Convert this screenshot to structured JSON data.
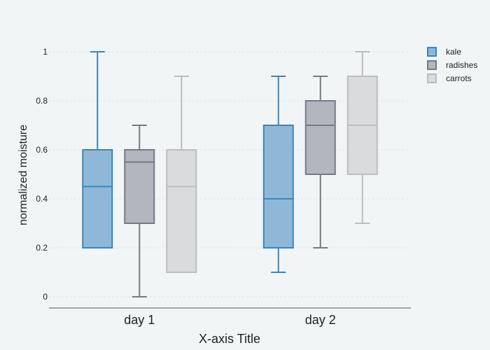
{
  "chart_data": {
    "type": "box",
    "title": "",
    "xlabel": "X-axis Title",
    "ylabel": "normalized moisture",
    "categories": [
      "day 1",
      "day 2"
    ],
    "yticks": [
      "0",
      "0.2",
      "0.4",
      "0.6",
      "0.8",
      "1"
    ],
    "ylim": [
      -0.04,
      1.04
    ],
    "grid": true,
    "legend_position": "top-right",
    "series": [
      {
        "name": "kale",
        "stroke": "#3d85b6",
        "fill": "#8fb8d8",
        "boxes": [
          {
            "category": "day 1",
            "min": 0.2,
            "q1": 0.2,
            "median": 0.45,
            "q3": 0.6,
            "max": 1.0
          },
          {
            "category": "day 2",
            "min": 0.1,
            "q1": 0.2,
            "median": 0.4,
            "q3": 0.7,
            "max": 0.9
          }
        ]
      },
      {
        "name": "radishes",
        "stroke": "#767a82",
        "fill": "#b2b6be",
        "boxes": [
          {
            "category": "day 1",
            "min": 0.0,
            "q1": 0.3,
            "median": 0.55,
            "q3": 0.6,
            "max": 0.7
          },
          {
            "category": "day 2",
            "min": 0.2,
            "q1": 0.5,
            "median": 0.7,
            "q3": 0.8,
            "max": 0.9
          }
        ]
      },
      {
        "name": "carrots",
        "stroke": "#bcbdbf",
        "fill": "#d9dbdd",
        "boxes": [
          {
            "category": "day 1",
            "min": 0.1,
            "q1": 0.1,
            "median": 0.45,
            "q3": 0.6,
            "max": 0.9
          },
          {
            "category": "day 2",
            "min": 0.3,
            "q1": 0.5,
            "median": 0.7,
            "q3": 0.9,
            "max": 1.0
          }
        ]
      }
    ]
  }
}
